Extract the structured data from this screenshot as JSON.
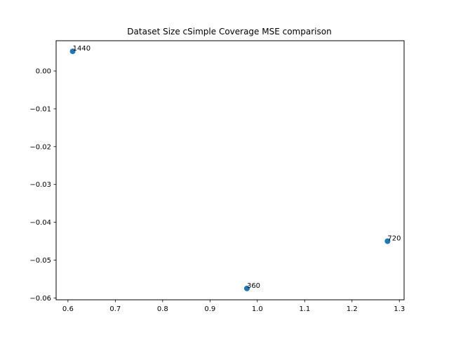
{
  "chart_data": {
    "type": "scatter",
    "title": "Dataset Size cSimple Coverage MSE comparison",
    "xlabel": "",
    "ylabel": "",
    "xlim": [
      0.575,
      1.31
    ],
    "ylim": [
      -0.0605,
      0.008
    ],
    "grid": false,
    "point_color": "#1f77b4",
    "x_ticks": [
      {
        "value": 0.6,
        "label": "0.6"
      },
      {
        "value": 0.7,
        "label": "0.7"
      },
      {
        "value": 0.8,
        "label": "0.8"
      },
      {
        "value": 0.9,
        "label": "0.9"
      },
      {
        "value": 1.0,
        "label": "1.0"
      },
      {
        "value": 1.1,
        "label": "1.1"
      },
      {
        "value": 1.2,
        "label": "1.2"
      },
      {
        "value": 1.3,
        "label": "1.3"
      }
    ],
    "y_ticks": [
      {
        "value": 0.0,
        "label": "0.00"
      },
      {
        "value": -0.01,
        "label": "−0.01"
      },
      {
        "value": -0.02,
        "label": "−0.02"
      },
      {
        "value": -0.03,
        "label": "−0.03"
      },
      {
        "value": -0.04,
        "label": "−0.04"
      },
      {
        "value": -0.05,
        "label": "−0.05"
      },
      {
        "value": -0.06,
        "label": "−0.06"
      }
    ],
    "points": [
      {
        "x": 0.61,
        "y": 0.0052,
        "label": "1440"
      },
      {
        "x": 1.275,
        "y": -0.045,
        "label": "720"
      },
      {
        "x": 0.978,
        "y": -0.0575,
        "label": "360"
      }
    ]
  }
}
